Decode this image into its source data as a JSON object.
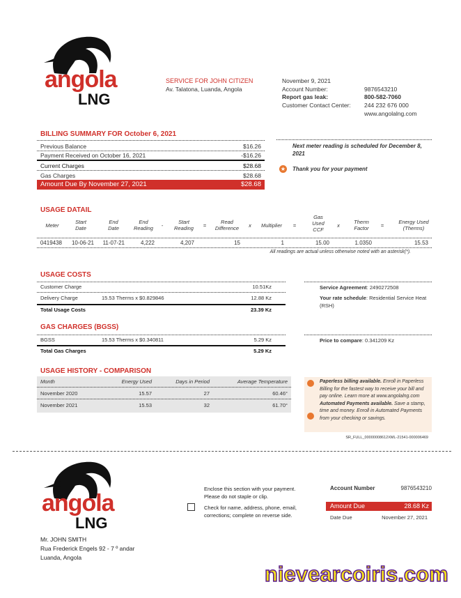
{
  "brand": {
    "name_top": "angola",
    "name_bottom": "LNG",
    "red": "#d0302a"
  },
  "service": {
    "title": "SERVICE FOR JOHN CITIZEN",
    "address": "Av. Talatona, Luanda, Angola"
  },
  "info": {
    "date": "November 9, 2021",
    "account_label": "Account Number:",
    "account_value": "9876543210",
    "leak_label": "Report gas leak:",
    "leak_value": "800-582-7060",
    "contact_label": "Customer Contact Center:",
    "contact_value": "244 232 676 000",
    "website": "www.angolalng.com"
  },
  "billing": {
    "title": "BILLING SUMMARY FOR October 6, 2021",
    "rows": [
      {
        "label": "Previous Balance",
        "value": "$16.26"
      },
      {
        "label": "Payment Received on October 16, 2021",
        "value": "-$16.26"
      },
      {
        "label": "Current Charges",
        "value": "$28.68"
      },
      {
        "label": "Gas Charges",
        "value": "$28.68"
      }
    ],
    "due_label": "Amount Due By November 27, 2021",
    "due_value": "$28.68"
  },
  "notes": {
    "meter": "Next meter reading is scheduled for December 8, 2021",
    "thanks": "Thank you for your payment"
  },
  "usage_detail": {
    "title": "USAGE DATAIL",
    "headers": [
      "Meter",
      "Start Date",
      "End Date",
      "End Reading",
      "-",
      "Start Reading",
      "=",
      "Read Difference",
      "x",
      "Multiplier",
      "=",
      "Gas Used CCF",
      "x",
      "Therm Factor",
      "=",
      "Energy Used (Therms)"
    ],
    "row": [
      "0419438",
      "10-06-21",
      "11-07-21",
      "4,222",
      "4,207",
      "15",
      "1",
      "15.00",
      "1.0350",
      "15.53"
    ],
    "note": "All readings are actual unless otherwise noted with an asterisk(*)."
  },
  "usage_costs": {
    "title": "USAGE COSTS",
    "rows": [
      {
        "label": "Customer Charge",
        "detail": "",
        "value": "10.51Kz"
      },
      {
        "label": "Delivery Charge",
        "detail": "15.53 Therms x $0.829846",
        "value": "12.88 Kz"
      }
    ],
    "total_label": "Total Usage Costs",
    "total_value": "23.39 Kz"
  },
  "agreement": {
    "label": "Service Agreement",
    "value": ": 2490272508",
    "rate_label": "Your rate schedule",
    "rate_value": ": Residential Service Heat (RSH)"
  },
  "gas_charges": {
    "title": "GAS CHARGES (BGSS)",
    "rows": [
      {
        "label": "BGSS",
        "detail": "15.53 Therms x $0.340811",
        "value": "5.29 Kz"
      }
    ],
    "total_label": "Total Gas Charges",
    "total_value": "5.29 Kz"
  },
  "price_compare": {
    "label": "Price to compare",
    "value": ": 0.341209 Kz"
  },
  "history": {
    "title": "USAGE HISTORY - COMPARISON",
    "headers": [
      "Month",
      "Energy Used",
      "Days in Period",
      "Average Temperature"
    ],
    "rows": [
      [
        "November 2020",
        "15.57",
        "27",
        "60.46°"
      ],
      [
        "November 2021",
        "15.53",
        "32",
        "61.70°"
      ]
    ]
  },
  "promo": {
    "p1_bold": "Paperless billing available.",
    "p1": " Enroll in Paperless Billing for the fastest way to receive your bill and pay online. Learn more at www.angolalng.com",
    "p2_bold": "Automated Payments available.",
    "p2": " Save a stamp, time and money. Enroll in Automated Payments from your checking or savings."
  },
  "code": "SR_FULL_00000008612XML-21541-000006469",
  "stub": {
    "enclose": "Enclose this section with your payment.",
    "staple": "Please do not staple or clip.",
    "check": "Check for name, address, phone, email, corrections; complete on reverse side.",
    "account_label": "Account Number",
    "account_value": "9876543210",
    "due_label": "Amount Due",
    "due_value": "28.68 Kz",
    "date_label": "Date Due",
    "date_value": "November 27, 2021"
  },
  "customer": {
    "name": "Mr. JOHN SMITH",
    "street": "Rua Frederick Engels 92 - 7 º andar",
    "city": "Luanda, Angola"
  },
  "watermark": "nievearcoiris.com"
}
